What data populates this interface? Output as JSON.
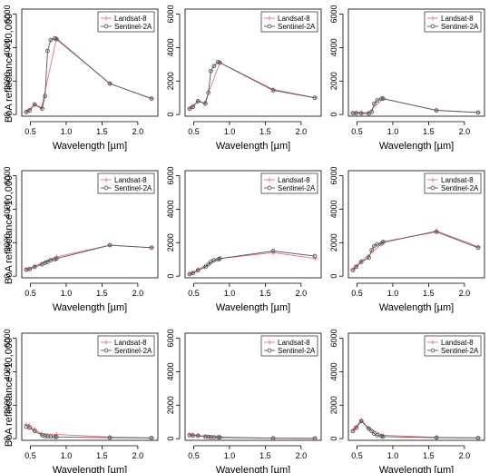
{
  "colors": {
    "landsat": "#e8707a",
    "sentinel": "#555555",
    "axis": "#000000"
  },
  "chart_data": [
    {
      "type": "line",
      "xlabel": "Wavelength  [µm]",
      "ylabel": "BoA reflectance ×10,000",
      "xticks": [
        "0.5",
        "1.0",
        "1.5",
        "2.0"
      ],
      "yticks": [
        "0",
        "2000",
        "4000",
        "6000"
      ],
      "xlim": [
        0.38,
        2.28
      ],
      "ylim": [
        -100,
        6300
      ],
      "legend": {
        "position": "top-right",
        "entries": [
          "Landsat-8",
          "Sentinel-2A"
        ]
      },
      "series": [
        {
          "name": "Landsat-8",
          "x": [
            0.443,
            0.482,
            0.561,
            0.655,
            0.865,
            1.609,
            2.201
          ],
          "y": [
            150,
            280,
            600,
            400,
            4550,
            1850,
            950
          ]
        },
        {
          "name": "Sentinel-2A",
          "x": [
            0.443,
            0.49,
            0.56,
            0.665,
            0.705,
            0.74,
            0.783,
            0.842,
            0.865,
            1.61,
            2.19
          ],
          "y": [
            150,
            250,
            600,
            350,
            1100,
            3800,
            4450,
            4550,
            4500,
            1850,
            950
          ]
        }
      ]
    },
    {
      "type": "line",
      "xlabel": "Wavelength  [µm]",
      "ylabel": "",
      "xticks": [
        "0.5",
        "1.0",
        "1.5",
        "2.0"
      ],
      "yticks": [
        "0",
        "2000",
        "4000",
        "6000"
      ],
      "xlim": [
        0.38,
        2.28
      ],
      "ylim": [
        -100,
        6300
      ],
      "legend": {
        "position": "top-right",
        "entries": [
          "Landsat-8",
          "Sentinel-2A"
        ]
      },
      "series": [
        {
          "name": "Landsat-8",
          "x": [
            0.443,
            0.482,
            0.561,
            0.655,
            0.865,
            1.609,
            2.201
          ],
          "y": [
            350,
            500,
            800,
            700,
            3100,
            1500,
            1000
          ]
        },
        {
          "name": "Sentinel-2A",
          "x": [
            0.443,
            0.49,
            0.56,
            0.665,
            0.705,
            0.74,
            0.783,
            0.842,
            0.865,
            1.61,
            2.19
          ],
          "y": [
            350,
            450,
            800,
            650,
            1300,
            2600,
            2900,
            3150,
            3100,
            1450,
            1000
          ]
        }
      ]
    },
    {
      "type": "line",
      "xlabel": "Wavelength  [µm]",
      "ylabel": "",
      "xticks": [
        "0.5",
        "1.0",
        "1.5",
        "2.0"
      ],
      "yticks": [
        "0",
        "2000",
        "4000",
        "6000"
      ],
      "xlim": [
        0.38,
        2.28
      ],
      "ylim": [
        -100,
        6300
      ],
      "legend": {
        "position": "top-right",
        "entries": [
          "Landsat-8",
          "Sentinel-2A"
        ]
      },
      "series": [
        {
          "name": "Landsat-8",
          "x": [
            0.443,
            0.482,
            0.561,
            0.655,
            0.865,
            1.609,
            2.201
          ],
          "y": [
            100,
            120,
            130,
            100,
            950,
            250,
            120
          ]
        },
        {
          "name": "Sentinel-2A",
          "x": [
            0.443,
            0.49,
            0.56,
            0.665,
            0.705,
            0.74,
            0.783,
            0.842,
            0.865,
            1.61,
            2.19
          ],
          "y": [
            80,
            80,
            70,
            60,
            150,
            650,
            850,
            950,
            950,
            250,
            120
          ]
        }
      ]
    },
    {
      "type": "line",
      "xlabel": "Wavelength  [µm]",
      "ylabel": "BoA reflectance ×10,000",
      "xticks": [
        "0.5",
        "1.0",
        "1.5",
        "2.0"
      ],
      "yticks": [
        "0",
        "2000",
        "4000",
        "6000"
      ],
      "xlim": [
        0.38,
        2.28
      ],
      "ylim": [
        -100,
        6300
      ],
      "legend": {
        "position": "top-right",
        "entries": [
          "Landsat-8",
          "Sentinel-2A"
        ]
      },
      "series": [
        {
          "name": "Landsat-8",
          "x": [
            0.443,
            0.482,
            0.561,
            0.655,
            0.865,
            1.609,
            2.201
          ],
          "y": [
            400,
            450,
            600,
            750,
            1150,
            1850,
            1700
          ]
        },
        {
          "name": "Sentinel-2A",
          "x": [
            0.443,
            0.49,
            0.56,
            0.665,
            0.705,
            0.74,
            0.783,
            0.842,
            0.865,
            1.61,
            2.19
          ],
          "y": [
            380,
            420,
            550,
            700,
            800,
            850,
            950,
            1000,
            1050,
            1850,
            1700
          ]
        }
      ]
    },
    {
      "type": "line",
      "xlabel": "Wavelength  [µm]",
      "ylabel": "",
      "xticks": [
        "0.5",
        "1.0",
        "1.5",
        "2.0"
      ],
      "yticks": [
        "0",
        "2000",
        "4000",
        "6000"
      ],
      "xlim": [
        0.38,
        2.28
      ],
      "ylim": [
        -100,
        6300
      ],
      "legend": {
        "position": "top-right",
        "entries": [
          "Landsat-8",
          "Sentinel-2A"
        ]
      },
      "series": [
        {
          "name": "Landsat-8",
          "x": [
            0.443,
            0.482,
            0.561,
            0.655,
            0.865,
            1.609,
            2.201
          ],
          "y": [
            120,
            200,
            400,
            600,
            1050,
            1400,
            1050
          ]
        },
        {
          "name": "Sentinel-2A",
          "x": [
            0.443,
            0.49,
            0.56,
            0.665,
            0.705,
            0.74,
            0.783,
            0.842,
            0.865,
            1.61,
            2.19
          ],
          "y": [
            120,
            180,
            350,
            550,
            700,
            850,
            950,
            1000,
            1050,
            1500,
            1200
          ]
        }
      ]
    },
    {
      "type": "line",
      "xlabel": "Wavelength  [µm]",
      "ylabel": "",
      "xticks": [
        "0.5",
        "1.0",
        "1.5",
        "2.0"
      ],
      "yticks": [
        "0",
        "2000",
        "4000",
        "6000"
      ],
      "xlim": [
        0.38,
        2.28
      ],
      "ylim": [
        -100,
        6300
      ],
      "legend": {
        "position": "top-right",
        "entries": [
          "Landsat-8",
          "Sentinel-2A"
        ]
      },
      "series": [
        {
          "name": "Landsat-8",
          "x": [
            0.443,
            0.482,
            0.561,
            0.655,
            0.865,
            1.609,
            2.201
          ],
          "y": [
            400,
            600,
            900,
            1200,
            2000,
            2700,
            1750
          ]
        },
        {
          "name": "Sentinel-2A",
          "x": [
            0.443,
            0.49,
            0.56,
            0.665,
            0.705,
            0.74,
            0.783,
            0.842,
            0.865,
            1.61,
            2.19
          ],
          "y": [
            350,
            550,
            850,
            1100,
            1550,
            1800,
            1900,
            1950,
            2050,
            2650,
            1700
          ]
        }
      ]
    },
    {
      "type": "line",
      "xlabel": "Wavelength  [µm]",
      "ylabel": "BoA reflectance ×10,000",
      "xticks": [
        "0.5",
        "1.0",
        "1.5",
        "2.0"
      ],
      "yticks": [
        "0",
        "2000",
        "4000",
        "6000"
      ],
      "xlim": [
        0.38,
        2.28
      ],
      "ylim": [
        -100,
        6300
      ],
      "legend": {
        "position": "top-right",
        "entries": [
          "Landsat-8",
          "Sentinel-2A"
        ]
      },
      "series": [
        {
          "name": "Landsat-8",
          "x": [
            0.443,
            0.482,
            0.561,
            0.655,
            0.865,
            1.609,
            2.201
          ],
          "y": [
            850,
            800,
            550,
            300,
            250,
            100,
            50
          ]
        },
        {
          "name": "Sentinel-2A",
          "x": [
            0.443,
            0.49,
            0.56,
            0.665,
            0.705,
            0.74,
            0.783,
            0.842,
            0.865,
            1.61,
            2.19
          ],
          "y": [
            700,
            650,
            450,
            200,
            150,
            130,
            120,
            110,
            100,
            60,
            40
          ]
        }
      ]
    },
    {
      "type": "line",
      "xlabel": "Wavelength  [µm]",
      "ylabel": "",
      "xticks": [
        "0.5",
        "1.0",
        "1.5",
        "2.0"
      ],
      "yticks": [
        "0",
        "2000",
        "4000",
        "6000"
      ],
      "xlim": [
        0.38,
        2.28
      ],
      "ylim": [
        -100,
        6300
      ],
      "legend": {
        "position": "top-right",
        "entries": [
          "Landsat-8",
          "Sentinel-2A"
        ]
      },
      "series": [
        {
          "name": "Landsat-8",
          "x": [
            0.443,
            0.482,
            0.561,
            0.655,
            0.865,
            1.609,
            2.201
          ],
          "y": [
            250,
            230,
            200,
            150,
            100,
            30,
            20
          ]
        },
        {
          "name": "Sentinel-2A",
          "x": [
            0.443,
            0.49,
            0.56,
            0.665,
            0.705,
            0.74,
            0.783,
            0.842,
            0.865,
            1.61,
            2.19
          ],
          "y": [
            200,
            190,
            170,
            120,
            100,
            90,
            85,
            80,
            70,
            25,
            15
          ]
        }
      ]
    },
    {
      "type": "line",
      "xlabel": "Wavelength  [µm]",
      "ylabel": "",
      "xticks": [
        "0.5",
        "1.0",
        "1.5",
        "2.0"
      ],
      "yticks": [
        "0",
        "2000",
        "4000",
        "6000"
      ],
      "xlim": [
        0.38,
        2.28
      ],
      "ylim": [
        -100,
        6300
      ],
      "legend": {
        "position": "top-right",
        "entries": [
          "Landsat-8",
          "Sentinel-2A"
        ]
      },
      "series": [
        {
          "name": "Landsat-8",
          "x": [
            0.443,
            0.482,
            0.561,
            0.655,
            0.865,
            1.609,
            2.201
          ],
          "y": [
            500,
            700,
            1100,
            650,
            200,
            80,
            50
          ]
        },
        {
          "name": "Sentinel-2A",
          "x": [
            0.443,
            0.49,
            0.56,
            0.665,
            0.705,
            0.74,
            0.783,
            0.842,
            0.865,
            1.61,
            2.19
          ],
          "y": [
            450,
            650,
            1050,
            600,
            450,
            300,
            200,
            150,
            120,
            60,
            40
          ]
        }
      ]
    }
  ]
}
